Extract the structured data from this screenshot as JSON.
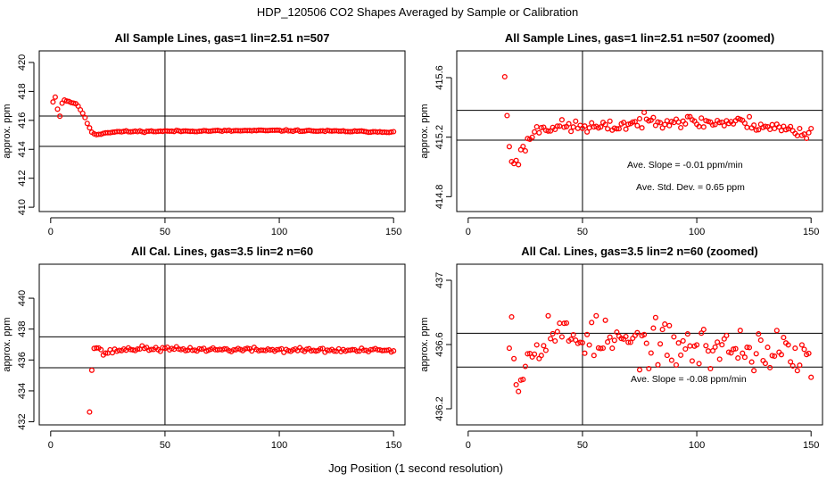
{
  "suptitle": "HDP_120506  CO2 Shapes Averaged by Sample or Calibration",
  "shared_xlabel": "Jog Position (1 second resolution)",
  "colors": {
    "points": "#ff0000",
    "lines": "#000000",
    "background": "#ffffff"
  },
  "chart_data": [
    {
      "type": "scatter",
      "title": "All Sample Lines, gas=1 lin=2.51 n=507",
      "xlabel": "",
      "ylabel": "approx. ppm",
      "xlim": [
        -5,
        155
      ],
      "ylim": [
        409.7,
        420.8
      ],
      "xticks": [
        0,
        50,
        100,
        150
      ],
      "yticks": [
        410,
        412,
        414,
        416,
        418,
        420
      ],
      "grid": false,
      "hlines": [
        414.2,
        416.3
      ],
      "vline": 50,
      "annotations": [],
      "profile": {
        "anchors": [
          [
            1,
            417.3
          ],
          [
            2,
            417.6
          ],
          [
            3,
            416.8
          ],
          [
            4,
            416.3
          ],
          [
            5,
            417.2
          ],
          [
            6,
            417.4
          ],
          [
            8,
            417.3
          ],
          [
            10,
            417.2
          ],
          [
            12,
            417.0
          ],
          [
            14,
            416.5
          ],
          [
            16,
            415.8
          ],
          [
            18,
            415.2
          ],
          [
            20,
            415.0
          ],
          [
            24,
            415.15
          ],
          [
            30,
            415.22
          ],
          [
            50,
            415.25
          ],
          [
            100,
            415.3
          ],
          [
            150,
            415.2
          ]
        ],
        "noise": 0.03,
        "seed": 11
      },
      "series": [
        {
          "x_range": [
            1,
            150
          ],
          "y": []
        }
      ]
    },
    {
      "type": "scatter",
      "title": "All Sample Lines, gas=1 lin=2.51 n=507 (zoomed)",
      "xlabel": "",
      "ylabel": "approx. ppm",
      "xlim": [
        -5,
        155
      ],
      "ylim": [
        414.7,
        415.78
      ],
      "xticks": [
        0,
        50,
        100,
        150
      ],
      "yticks": [
        414.8,
        415.2,
        415.6
      ],
      "grid": false,
      "hlines": [
        415.18,
        415.38
      ],
      "vline": 50,
      "annotations": [
        "Ave. Slope =  -0.01  ppm/min",
        "Ave. Std. Dev. =  0.65  ppm"
      ],
      "profile": {
        "anchors": [
          [
            16,
            415.62
          ],
          [
            17,
            415.32
          ],
          [
            18,
            415.15
          ],
          [
            19,
            415.03
          ],
          [
            20,
            415.04
          ],
          [
            21,
            415.06
          ],
          [
            22,
            415.05
          ],
          [
            24,
            415.12
          ],
          [
            26,
            415.17
          ],
          [
            28,
            415.22
          ],
          [
            32,
            415.27
          ],
          [
            40,
            415.27
          ],
          [
            50,
            415.27
          ],
          [
            60,
            415.26
          ],
          [
            70,
            415.29
          ],
          [
            85,
            415.32
          ],
          [
            100,
            415.3
          ],
          [
            120,
            415.3
          ],
          [
            140,
            415.25
          ],
          [
            150,
            415.22
          ]
        ],
        "noise": 0.028,
        "seed": 23
      },
      "series": [
        {
          "x_range": [
            16,
            150
          ],
          "y": []
        }
      ]
    },
    {
      "type": "scatter",
      "title": "All Cal. Lines, gas=3.5 lin=2 n=60",
      "xlabel": "",
      "ylabel": "approx. ppm",
      "xlim": [
        -5,
        155
      ],
      "ylim": [
        431.8,
        442.2
      ],
      "xticks": [
        0,
        50,
        100,
        150
      ],
      "yticks": [
        432,
        434,
        436,
        438,
        440
      ],
      "grid": false,
      "hlines": [
        435.5,
        437.5
      ],
      "vline": 50,
      "annotations": [],
      "profile": {
        "anchors": [
          [
            17,
            432.7
          ],
          [
            18,
            435.5
          ],
          [
            19,
            436.8
          ],
          [
            21,
            436.8
          ],
          [
            23,
            436.4
          ],
          [
            25,
            436.5
          ],
          [
            30,
            436.65
          ],
          [
            40,
            436.75
          ],
          [
            50,
            436.7
          ],
          [
            100,
            436.65
          ],
          [
            150,
            436.6
          ]
        ],
        "noise": 0.09,
        "seed": 37
      },
      "series": [
        {
          "x_range": [
            17,
            150
          ],
          "y": []
        }
      ]
    },
    {
      "type": "scatter",
      "title": "All Cal. Lines, gas=3.5 lin=2 n=60 (zoomed)",
      "xlabel": "",
      "ylabel": "approx. ppm",
      "xlim": [
        -5,
        155
      ],
      "ylim": [
        436.1,
        437.1
      ],
      "xticks": [
        0,
        50,
        100,
        150
      ],
      "yticks": [
        436.2,
        436.6,
        437.0
      ],
      "grid": false,
      "hlines": [
        436.46,
        436.67
      ],
      "vline": 50,
      "annotations": [
        "Ave. Slope =  -0.08  ppm/min"
      ],
      "profile": {
        "anchors": [
          [
            18,
            436.72
          ],
          [
            19,
            436.76
          ],
          [
            20,
            436.6
          ],
          [
            21,
            436.35
          ],
          [
            22,
            436.4
          ],
          [
            24,
            436.45
          ],
          [
            26,
            436.52
          ],
          [
            30,
            436.62
          ],
          [
            36,
            436.7
          ],
          [
            45,
            436.63
          ],
          [
            50,
            436.66
          ],
          [
            60,
            436.62
          ],
          [
            80,
            436.6
          ],
          [
            100,
            436.58
          ],
          [
            120,
            436.58
          ],
          [
            135,
            436.55
          ],
          [
            150,
            436.5
          ]
        ],
        "noise": 0.085,
        "seed": 53
      },
      "series": [
        {
          "x_range": [
            18,
            150
          ],
          "y": []
        }
      ]
    }
  ]
}
